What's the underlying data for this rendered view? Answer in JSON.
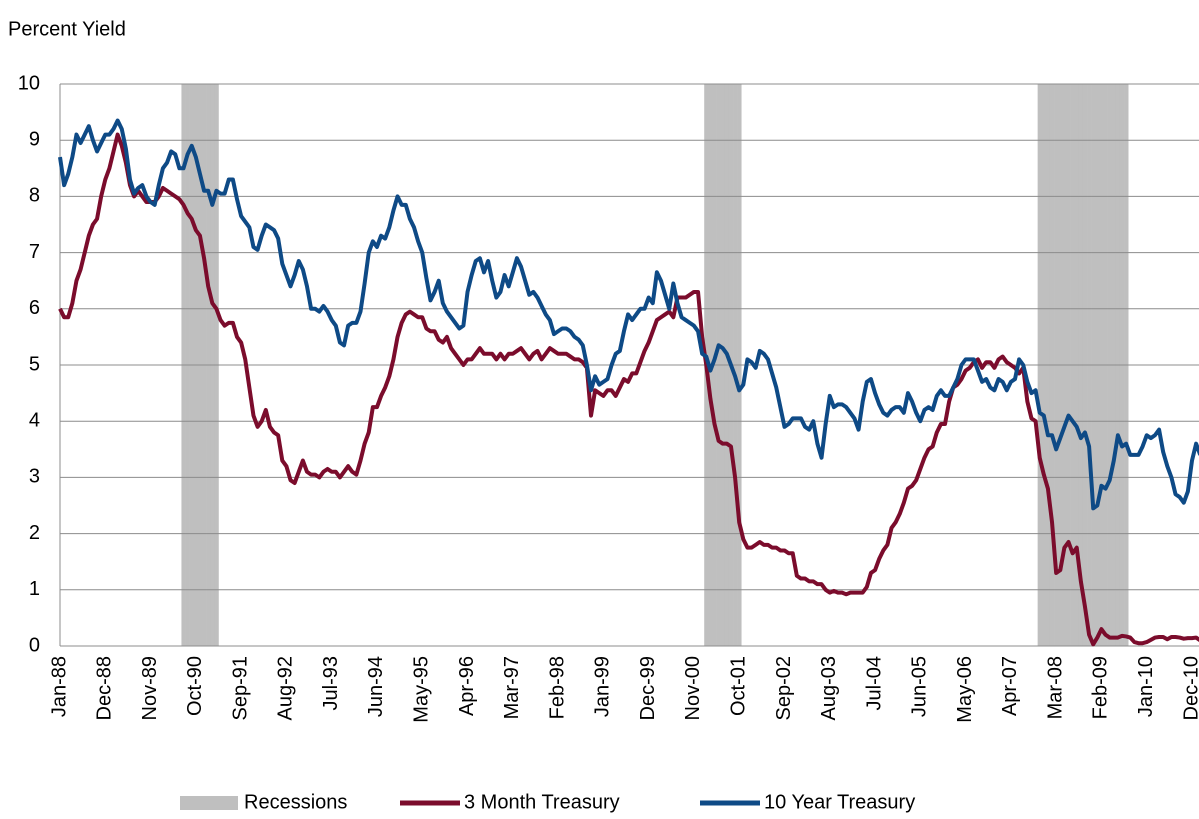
{
  "chart_data": {
    "type": "line",
    "ylabel": "Percent Yield",
    "ylim": [
      0,
      10
    ],
    "yticks": [
      0,
      1,
      2,
      3,
      4,
      5,
      6,
      7,
      8,
      9,
      10
    ],
    "grid": true,
    "legend": "bottom",
    "categories": [
      "Jan-88",
      null,
      null,
      null,
      null,
      null,
      null,
      null,
      null,
      null,
      null,
      "Dec-88",
      null,
      null,
      null,
      null,
      null,
      null,
      null,
      null,
      null,
      null,
      "Nov-89",
      null,
      null,
      null,
      null,
      null,
      null,
      null,
      null,
      null,
      null,
      "Oct-90",
      null,
      null,
      null,
      null,
      null,
      null,
      null,
      null,
      null,
      null,
      "Sep-91",
      null,
      null,
      null,
      null,
      null,
      null,
      null,
      null,
      null,
      null,
      "Aug-92",
      null,
      null,
      null,
      null,
      null,
      null,
      null,
      null,
      null,
      null,
      "Jul-93",
      null,
      null,
      null,
      null,
      null,
      null,
      null,
      null,
      null,
      null,
      "Jun-94",
      null,
      null,
      null,
      null,
      null,
      null,
      null,
      null,
      null,
      null,
      "May-95",
      null,
      null,
      null,
      null,
      null,
      null,
      null,
      null,
      null,
      null,
      "Apr-96",
      null,
      null,
      null,
      null,
      null,
      null,
      null,
      null,
      null,
      null,
      "Mar-97",
      null,
      null,
      null,
      null,
      null,
      null,
      null,
      null,
      null,
      null,
      "Feb-98",
      null,
      null,
      null,
      null,
      null,
      null,
      null,
      null,
      null,
      null,
      "Jan-99",
      null,
      null,
      null,
      null,
      null,
      null,
      null,
      null,
      null,
      null,
      "Dec-99",
      null,
      null,
      null,
      null,
      null,
      null,
      null,
      null,
      null,
      null,
      "Nov-00",
      null,
      null,
      null,
      null,
      null,
      null,
      null,
      null,
      null,
      null,
      "Oct-01",
      null,
      null,
      null,
      null,
      null,
      null,
      null,
      null,
      null,
      null,
      "Sep-02",
      null,
      null,
      null,
      null,
      null,
      null,
      null,
      null,
      null,
      null,
      "Aug-03",
      null,
      null,
      null,
      null,
      null,
      null,
      null,
      null,
      null,
      null,
      "Jul-04",
      null,
      null,
      null,
      null,
      null,
      null,
      null,
      null,
      null,
      null,
      "Jun-05",
      null,
      null,
      null,
      null,
      null,
      null,
      null,
      null,
      null,
      null,
      "May-06",
      null,
      null,
      null,
      null,
      null,
      null,
      null,
      null,
      null,
      null,
      "Apr-07",
      null,
      null,
      null,
      null,
      null,
      null,
      null,
      null,
      null,
      null,
      "Mar-08",
      null,
      null,
      null,
      null,
      null,
      null,
      null,
      null,
      null,
      null,
      "Feb-09",
      null,
      null,
      null,
      null,
      null,
      null,
      null,
      null,
      null,
      null,
      "Jan-10",
      null,
      null,
      null,
      null,
      null,
      null,
      null,
      null,
      null,
      null,
      "Dec-10",
      null,
      null
    ],
    "series": [
      {
        "name": "Recessions",
        "type": "bar",
        "color": "#bfbfbf",
        "values": [
          0,
          0,
          0,
          0,
          0,
          0,
          0,
          0,
          0,
          0,
          0,
          0,
          0,
          0,
          0,
          0,
          0,
          0,
          0,
          0,
          0,
          0,
          0,
          0,
          0,
          0,
          0,
          0,
          0,
          0,
          10,
          10,
          10,
          10,
          10,
          10,
          10,
          10,
          10,
          0,
          0,
          0,
          0,
          0,
          0,
          0,
          0,
          0,
          0,
          0,
          0,
          0,
          0,
          0,
          0,
          0,
          0,
          0,
          0,
          0,
          0,
          0,
          0,
          0,
          0,
          0,
          0,
          0,
          0,
          0,
          0,
          0,
          0,
          0,
          0,
          0,
          0,
          0,
          0,
          0,
          0,
          0,
          0,
          0,
          0,
          0,
          0,
          0,
          0,
          0,
          0,
          0,
          0,
          0,
          0,
          0,
          0,
          0,
          0,
          0,
          0,
          0,
          0,
          0,
          0,
          0,
          0,
          0,
          0,
          0,
          0,
          0,
          0,
          0,
          0,
          0,
          0,
          0,
          0,
          0,
          0,
          0,
          0,
          0,
          0,
          0,
          0,
          0,
          0,
          0,
          0,
          0,
          0,
          0,
          0,
          0,
          0,
          0,
          0,
          0,
          0,
          0,
          0,
          0,
          0,
          0,
          0,
          0,
          0,
          0,
          0,
          0,
          0,
          0,
          0,
          0,
          0,
          10,
          10,
          10,
          10,
          10,
          10,
          10,
          10,
          10,
          0,
          0,
          0,
          0,
          0,
          0,
          0,
          0,
          0,
          0,
          0,
          0,
          0,
          0,
          0,
          0,
          0,
          0,
          0,
          0,
          0,
          0,
          0,
          0,
          0,
          0,
          0,
          0,
          0,
          0,
          0,
          0,
          0,
          0,
          0,
          0,
          0,
          0,
          0,
          0,
          0,
          0,
          0,
          0,
          0,
          0,
          0,
          0,
          0,
          0,
          0,
          0,
          0,
          0,
          0,
          0,
          0,
          0,
          0,
          0,
          0,
          0,
          0,
          0,
          0,
          0,
          0,
          0,
          0,
          0,
          0,
          0,
          10,
          10,
          10,
          10,
          10,
          10,
          10,
          10,
          10,
          10,
          10,
          10,
          10,
          10,
          10,
          10,
          10,
          10,
          10,
          10,
          10,
          10,
          0,
          0,
          0,
          0,
          0,
          0,
          0,
          0,
          0,
          0,
          0,
          0,
          0,
          0,
          0,
          0,
          0,
          0
        ]
      },
      {
        "name": "3 Month Treasury",
        "type": "line",
        "color": "#7b0c2c",
        "values": [
          6.0,
          5.85,
          5.85,
          6.1,
          6.5,
          6.7,
          7.0,
          7.3,
          7.5,
          7.6,
          8.0,
          8.3,
          8.5,
          8.8,
          9.1,
          8.9,
          8.6,
          8.2,
          8.0,
          8.1,
          8.0,
          7.9,
          7.9,
          7.9,
          8.0,
          8.15,
          8.1,
          8.05,
          8.0,
          7.95,
          7.85,
          7.7,
          7.6,
          7.4,
          7.3,
          6.9,
          6.4,
          6.1,
          6.0,
          5.8,
          5.7,
          5.75,
          5.75,
          5.5,
          5.4,
          5.1,
          4.6,
          4.1,
          3.9,
          4.0,
          4.2,
          3.9,
          3.8,
          3.75,
          3.3,
          3.2,
          2.95,
          2.9,
          3.1,
          3.3,
          3.1,
          3.05,
          3.05,
          3.0,
          3.1,
          3.15,
          3.1,
          3.1,
          3.0,
          3.1,
          3.2,
          3.1,
          3.05,
          3.3,
          3.6,
          3.8,
          4.25,
          4.25,
          4.45,
          4.6,
          4.8,
          5.1,
          5.5,
          5.75,
          5.9,
          5.95,
          5.9,
          5.85,
          5.85,
          5.65,
          5.6,
          5.6,
          5.45,
          5.4,
          5.5,
          5.3,
          5.2,
          5.1,
          5.0,
          5.1,
          5.1,
          5.2,
          5.3,
          5.2,
          5.2,
          5.2,
          5.1,
          5.2,
          5.1,
          5.2,
          5.2,
          5.25,
          5.3,
          5.2,
          5.1,
          5.2,
          5.25,
          5.1,
          5.2,
          5.3,
          5.25,
          5.2,
          5.2,
          5.2,
          5.15,
          5.1,
          5.1,
          5.05,
          4.95,
          4.1,
          4.55,
          4.5,
          4.45,
          4.55,
          4.55,
          4.45,
          4.6,
          4.75,
          4.7,
          4.85,
          4.85,
          5.05,
          5.25,
          5.4,
          5.6,
          5.8,
          5.85,
          5.9,
          5.95,
          5.85,
          6.2,
          6.2,
          6.2,
          6.25,
          6.3,
          6.3,
          5.5,
          5.0,
          4.4,
          3.95,
          3.65,
          3.6,
          3.6,
          3.55,
          3.0,
          2.2,
          1.9,
          1.75,
          1.75,
          1.8,
          1.85,
          1.8,
          1.8,
          1.75,
          1.75,
          1.7,
          1.7,
          1.65,
          1.65,
          1.25,
          1.2,
          1.2,
          1.15,
          1.15,
          1.1,
          1.1,
          1.0,
          0.95,
          0.98,
          0.95,
          0.95,
          0.92,
          0.95,
          0.95,
          0.95,
          0.95,
          1.05,
          1.3,
          1.35,
          1.55,
          1.7,
          1.8,
          2.1,
          2.2,
          2.35,
          2.55,
          2.8,
          2.85,
          2.95,
          3.15,
          3.35,
          3.5,
          3.55,
          3.8,
          3.95,
          3.95,
          4.35,
          4.6,
          4.65,
          4.75,
          4.9,
          4.95,
          5.05,
          5.1,
          4.95,
          5.05,
          5.05,
          4.95,
          5.1,
          5.15,
          5.05,
          5.0,
          4.95,
          4.85,
          4.95,
          4.35,
          4.05,
          4.0,
          3.35,
          3.05,
          2.8,
          2.2,
          1.3,
          1.35,
          1.75,
          1.85,
          1.65,
          1.75,
          1.15,
          0.7,
          0.2,
          0.03,
          0.15,
          0.3,
          0.2,
          0.15,
          0.15,
          0.15,
          0.18,
          0.17,
          0.15,
          0.07,
          0.05,
          0.05,
          0.07,
          0.11,
          0.15,
          0.16,
          0.16,
          0.12,
          0.16,
          0.16,
          0.15,
          0.13,
          0.14,
          0.14,
          0.15,
          0.1
        ]
      },
      {
        "name": "10 Year Treasury",
        "type": "line",
        "color": "#0e4a86",
        "values": [
          8.7,
          8.2,
          8.4,
          8.7,
          9.1,
          8.95,
          9.1,
          9.25,
          9.0,
          8.8,
          8.95,
          9.1,
          9.1,
          9.2,
          9.35,
          9.2,
          8.85,
          8.3,
          8.05,
          8.15,
          8.2,
          8.0,
          7.9,
          7.85,
          8.2,
          8.5,
          8.6,
          8.8,
          8.75,
          8.5,
          8.5,
          8.75,
          8.9,
          8.7,
          8.4,
          8.1,
          8.1,
          7.85,
          8.1,
          8.05,
          8.05,
          8.3,
          8.3,
          7.95,
          7.65,
          7.55,
          7.45,
          7.1,
          7.05,
          7.3,
          7.5,
          7.45,
          7.4,
          7.25,
          6.8,
          6.6,
          6.4,
          6.6,
          6.85,
          6.7,
          6.4,
          6.0,
          6.0,
          5.95,
          6.05,
          5.95,
          5.8,
          5.7,
          5.4,
          5.35,
          5.7,
          5.75,
          5.75,
          5.95,
          6.45,
          7.0,
          7.2,
          7.1,
          7.3,
          7.25,
          7.45,
          7.75,
          8.0,
          7.85,
          7.85,
          7.6,
          7.45,
          7.2,
          7.0,
          6.55,
          6.15,
          6.3,
          6.5,
          6.1,
          5.95,
          5.85,
          5.75,
          5.65,
          5.7,
          6.3,
          6.6,
          6.85,
          6.9,
          6.65,
          6.85,
          6.5,
          6.2,
          6.3,
          6.6,
          6.4,
          6.65,
          6.9,
          6.75,
          6.5,
          6.25,
          6.3,
          6.2,
          6.05,
          5.9,
          5.8,
          5.55,
          5.6,
          5.65,
          5.65,
          5.6,
          5.5,
          5.45,
          5.35,
          5.0,
          4.55,
          4.8,
          4.65,
          4.7,
          4.75,
          5.0,
          5.2,
          5.25,
          5.6,
          5.9,
          5.8,
          5.9,
          6.0,
          6.0,
          6.2,
          6.1,
          6.65,
          6.5,
          6.25,
          6.0,
          6.45,
          6.1,
          5.85,
          5.8,
          5.75,
          5.7,
          5.6,
          5.2,
          5.15,
          4.9,
          5.1,
          5.35,
          5.3,
          5.2,
          5.0,
          4.8,
          4.55,
          4.65,
          5.1,
          5.05,
          4.95,
          5.25,
          5.2,
          5.1,
          4.85,
          4.6,
          4.25,
          3.9,
          3.95,
          4.05,
          4.05,
          4.05,
          3.9,
          3.85,
          4.0,
          3.6,
          3.35,
          3.95,
          4.45,
          4.25,
          4.3,
          4.3,
          4.25,
          4.15,
          4.05,
          3.85,
          4.35,
          4.7,
          4.75,
          4.5,
          4.3,
          4.15,
          4.1,
          4.2,
          4.25,
          4.25,
          4.15,
          4.5,
          4.35,
          4.15,
          4.0,
          4.2,
          4.25,
          4.2,
          4.45,
          4.55,
          4.45,
          4.45,
          4.6,
          4.75,
          5.0,
          5.1,
          5.1,
          5.1,
          4.9,
          4.7,
          4.75,
          4.6,
          4.55,
          4.75,
          4.7,
          4.55,
          4.7,
          4.75,
          5.1,
          5.0,
          4.7,
          4.5,
          4.55,
          4.15,
          4.1,
          3.75,
          3.75,
          3.5,
          3.7,
          3.9,
          4.1,
          4.0,
          3.9,
          3.7,
          3.8,
          3.55,
          2.45,
          2.5,
          2.85,
          2.8,
          2.95,
          3.3,
          3.75,
          3.55,
          3.6,
          3.4,
          3.4,
          3.4,
          3.55,
          3.75,
          3.7,
          3.75,
          3.85,
          3.45,
          3.2,
          3.0,
          2.7,
          2.65,
          2.55,
          2.75,
          3.3,
          3.6,
          3.4
        ]
      }
    ]
  }
}
